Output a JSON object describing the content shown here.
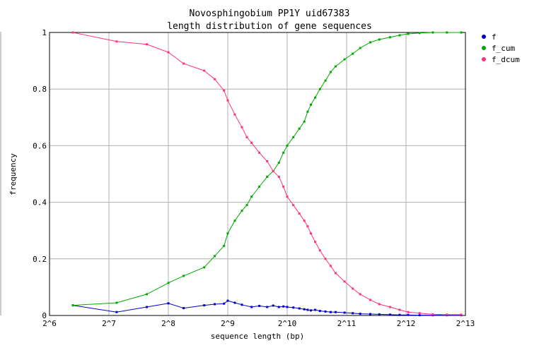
{
  "chart_data": {
    "type": "line",
    "title": "Novosphingobium PP1Y uid67383",
    "subtitle": "length distribution of gene sequences",
    "xlabel": "sequence length (bp)",
    "ylabel": "frequency",
    "x_scale": "log2",
    "xlim": [
      64,
      8192
    ],
    "ylim": [
      0,
      1
    ],
    "x_ticks": [
      "2^6",
      "2^7",
      "2^8",
      "2^9",
      "2^10",
      "2^11",
      "2^12",
      "2^13"
    ],
    "y_ticks": [
      "0",
      "0.2",
      "0.4",
      "0.6",
      "0.8",
      "1"
    ],
    "grid": true,
    "legend_position": "top-right",
    "series": [
      {
        "name": "f",
        "color": "#0000cc",
        "points": [
          [
            84,
            0.036
          ],
          [
            140,
            0.012
          ],
          [
            199,
            0.03
          ],
          [
            256,
            0.043
          ],
          [
            306,
            0.026
          ],
          [
            389,
            0.036
          ],
          [
            440,
            0.04
          ],
          [
            490,
            0.042
          ],
          [
            512,
            0.052
          ],
          [
            556,
            0.045
          ],
          [
            604,
            0.038
          ],
          [
            676,
            0.03
          ],
          [
            740,
            0.034
          ],
          [
            811,
            0.03
          ],
          [
            870,
            0.035
          ],
          [
            930,
            0.03
          ],
          [
            980,
            0.032
          ],
          [
            1024,
            0.03
          ],
          [
            1100,
            0.028
          ],
          [
            1180,
            0.025
          ],
          [
            1250,
            0.022
          ],
          [
            1300,
            0.02
          ],
          [
            1350,
            0.018
          ],
          [
            1420,
            0.02
          ],
          [
            1500,
            0.016
          ],
          [
            1600,
            0.014
          ],
          [
            1700,
            0.012
          ],
          [
            1800,
            0.012
          ],
          [
            2000,
            0.01
          ],
          [
            2200,
            0.008
          ],
          [
            2400,
            0.006
          ],
          [
            2700,
            0.005
          ],
          [
            3000,
            0.004
          ],
          [
            3400,
            0.003
          ],
          [
            3800,
            0.002
          ],
          [
            4200,
            0.002
          ],
          [
            4800,
            0.001
          ],
          [
            5600,
            0.001
          ],
          [
            6600,
            0.001
          ],
          [
            7800,
            0.001
          ]
        ]
      },
      {
        "name": "f_cum",
        "color": "#00aa00",
        "points": [
          [
            84,
            0.036
          ],
          [
            140,
            0.045
          ],
          [
            199,
            0.075
          ],
          [
            256,
            0.115
          ],
          [
            306,
            0.14
          ],
          [
            389,
            0.17
          ],
          [
            440,
            0.21
          ],
          [
            490,
            0.246
          ],
          [
            512,
            0.29
          ],
          [
            556,
            0.335
          ],
          [
            604,
            0.37
          ],
          [
            640,
            0.39
          ],
          [
            676,
            0.42
          ],
          [
            740,
            0.455
          ],
          [
            811,
            0.49
          ],
          [
            870,
            0.51
          ],
          [
            930,
            0.54
          ],
          [
            980,
            0.575
          ],
          [
            1024,
            0.6
          ],
          [
            1100,
            0.63
          ],
          [
            1180,
            0.66
          ],
          [
            1250,
            0.685
          ],
          [
            1300,
            0.72
          ],
          [
            1350,
            0.745
          ],
          [
            1420,
            0.77
          ],
          [
            1500,
            0.8
          ],
          [
            1600,
            0.83
          ],
          [
            1700,
            0.86
          ],
          [
            1800,
            0.88
          ],
          [
            2000,
            0.905
          ],
          [
            2200,
            0.925
          ],
          [
            2400,
            0.945
          ],
          [
            2700,
            0.965
          ],
          [
            3000,
            0.975
          ],
          [
            3400,
            0.983
          ],
          [
            3800,
            0.99
          ],
          [
            4200,
            0.995
          ],
          [
            4800,
            0.998
          ],
          [
            5600,
            1.0
          ],
          [
            6600,
            1.0
          ],
          [
            7800,
            1.0
          ]
        ]
      },
      {
        "name": "f_dcum",
        "color": "#ff3377",
        "points": [
          [
            84,
            1.0
          ],
          [
            140,
            0.968
          ],
          [
            199,
            0.958
          ],
          [
            256,
            0.93
          ],
          [
            306,
            0.89
          ],
          [
            389,
            0.865
          ],
          [
            440,
            0.835
          ],
          [
            490,
            0.795
          ],
          [
            512,
            0.76
          ],
          [
            556,
            0.71
          ],
          [
            604,
            0.665
          ],
          [
            640,
            0.63
          ],
          [
            676,
            0.61
          ],
          [
            740,
            0.575
          ],
          [
            811,
            0.545
          ],
          [
            870,
            0.51
          ],
          [
            930,
            0.49
          ],
          [
            980,
            0.455
          ],
          [
            1024,
            0.42
          ],
          [
            1100,
            0.39
          ],
          [
            1180,
            0.36
          ],
          [
            1250,
            0.335
          ],
          [
            1300,
            0.315
          ],
          [
            1350,
            0.29
          ],
          [
            1420,
            0.26
          ],
          [
            1500,
            0.23
          ],
          [
            1600,
            0.2
          ],
          [
            1700,
            0.175
          ],
          [
            1800,
            0.15
          ],
          [
            2000,
            0.12
          ],
          [
            2200,
            0.095
          ],
          [
            2400,
            0.075
          ],
          [
            2700,
            0.055
          ],
          [
            3000,
            0.04
          ],
          [
            3400,
            0.03
          ],
          [
            3800,
            0.02
          ],
          [
            4200,
            0.012
          ],
          [
            4800,
            0.008
          ],
          [
            5600,
            0.004
          ],
          [
            6600,
            0.003
          ],
          [
            7800,
            0.003
          ]
        ]
      }
    ]
  }
}
